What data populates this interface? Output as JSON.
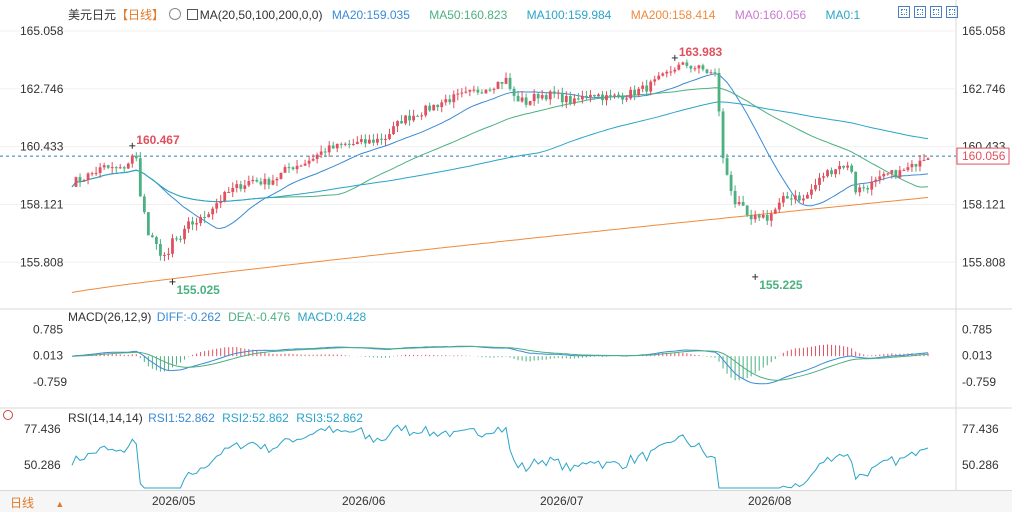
{
  "header": {
    "symbol": "美元日元",
    "period_tag": "【日线】",
    "ma_label": "MA(20,50,100,200,0,0)",
    "indicators": [
      {
        "label": "MA20:159.035",
        "color": "#3a8ad6"
      },
      {
        "label": "MA50:160.823",
        "color": "#4cb080"
      },
      {
        "label": "MA100:159.984",
        "color": "#2aa4c9"
      },
      {
        "label": "MA200:158.414",
        "color": "#f08a3c"
      },
      {
        "label": "MA0:160.056",
        "color": "#c87ad0"
      },
      {
        "label": "MA0:1",
        "color": "#2aa4c9"
      }
    ]
  },
  "macd_header": {
    "name": "MACD(26,12,9)",
    "diff": "DIFF:-0.262",
    "dea": "DEA:-0.476",
    "macd": "MACD:0.428"
  },
  "rsi_header": {
    "name": "RSI(14,14,14)",
    "rsi1": "RSI1:52.862",
    "rsi2": "RSI2:52.862",
    "rsi3": "RSI3:52.862"
  },
  "bottom": {
    "period_label": "日线",
    "dates": [
      "2026/05",
      "2026/06",
      "2026/07",
      "2026/08"
    ]
  },
  "colors": {
    "up": "#e0505e",
    "down": "#4cb080",
    "ma20": "#3a8ad6",
    "ma50": "#4cb080",
    "ma100": "#2aa4c9",
    "ma200": "#f08a3c",
    "current_price_box": "#e0505e",
    "accent_text": "#2aa4c9"
  },
  "chart_data": {
    "type": "candlestick",
    "price_axis": {
      "ticks": [
        "165.058",
        "162.746",
        "160.433",
        "158.121",
        "155.808"
      ],
      "ylim": [
        154.3,
        165.5
      ],
      "current_price": "160.056"
    },
    "annotations": [
      {
        "label": "160.467",
        "x_index": 15,
        "value": 160.467,
        "kind": "high"
      },
      {
        "label": "155.025",
        "x_index": 25,
        "value": 155.025,
        "kind": "low"
      },
      {
        "label": "163.983",
        "x_index": 150,
        "value": 163.983,
        "kind": "high"
      },
      {
        "label": "155.225",
        "x_index": 170,
        "value": 155.225,
        "kind": "low"
      }
    ],
    "candle_count": 214,
    "month_ticks": [
      {
        "label": "2026/05",
        "index": 21
      },
      {
        "label": "2026/06",
        "index": 66
      },
      {
        "label": "2026/07",
        "index": 110
      },
      {
        "label": "2026/08",
        "index": 158
      }
    ],
    "price_path": [
      [
        0,
        159.0
      ],
      [
        3,
        159.2
      ],
      [
        8,
        159.6
      ],
      [
        12,
        159.5
      ],
      [
        14,
        159.8
      ],
      [
        15,
        160.0
      ],
      [
        16,
        159.9
      ],
      [
        17,
        158.6
      ],
      [
        19,
        156.9
      ],
      [
        22,
        156.2
      ],
      [
        24,
        156.0
      ],
      [
        25,
        156.7
      ],
      [
        27,
        156.7
      ],
      [
        29,
        157.3
      ],
      [
        32,
        157.5
      ],
      [
        36,
        158.2
      ],
      [
        39,
        158.6
      ],
      [
        42,
        158.9
      ],
      [
        45,
        159.1
      ],
      [
        48,
        159.0
      ],
      [
        51,
        159.2
      ],
      [
        54,
        159.6
      ],
      [
        58,
        159.8
      ],
      [
        63,
        160.3
      ],
      [
        68,
        160.5
      ],
      [
        73,
        160.6
      ],
      [
        78,
        160.8
      ],
      [
        82,
        161.5
      ],
      [
        88,
        161.9
      ],
      [
        93,
        162.3
      ],
      [
        98,
        162.5
      ],
      [
        103,
        162.8
      ],
      [
        108,
        163.1
      ],
      [
        110,
        162.4
      ],
      [
        113,
        162.2
      ],
      [
        116,
        162.5
      ],
      [
        120,
        162.5
      ],
      [
        125,
        162.2
      ],
      [
        129,
        162.6
      ],
      [
        133,
        162.4
      ],
      [
        138,
        162.5
      ],
      [
        143,
        162.8
      ],
      [
        147,
        163.2
      ],
      [
        150,
        163.6
      ],
      [
        153,
        163.7
      ],
      [
        157,
        163.5
      ],
      [
        160,
        163.3
      ],
      [
        161,
        161.9
      ],
      [
        162,
        159.9
      ],
      [
        165,
        158.2
      ],
      [
        167,
        157.9
      ],
      [
        169,
        157.4
      ],
      [
        171,
        157.7
      ],
      [
        173,
        157.6
      ],
      [
        175,
        157.9
      ],
      [
        177,
        158.3
      ],
      [
        180,
        158.5
      ],
      [
        182,
        158.3
      ],
      [
        184,
        158.7
      ],
      [
        187,
        159.3
      ],
      [
        190,
        159.6
      ],
      [
        192,
        159.7
      ],
      [
        194,
        159.5
      ],
      [
        195,
        158.7
      ],
      [
        197,
        158.8
      ],
      [
        200,
        159.0
      ],
      [
        203,
        159.3
      ],
      [
        206,
        159.4
      ],
      [
        209,
        159.6
      ],
      [
        211,
        160.0
      ],
      [
        213,
        160.1
      ]
    ],
    "series": [
      {
        "name": "MA20",
        "value": 159.035
      },
      {
        "name": "MA50",
        "value": 160.823
      },
      {
        "name": "MA100",
        "value": 159.984
      },
      {
        "name": "MA200",
        "value": 158.414
      }
    ],
    "macd": {
      "ticks": [
        "0.785",
        "0.013",
        "-0.759"
      ],
      "ylim": [
        -1.4,
        1.0
      ],
      "diff": -0.262,
      "dea": -0.476,
      "macd": 0.428
    },
    "rsi": {
      "ticks": [
        "77.436",
        "50.286"
      ],
      "ylim": [
        33,
        84
      ],
      "rsi1": 52.862,
      "rsi2": 52.862,
      "rsi3": 52.862
    }
  }
}
